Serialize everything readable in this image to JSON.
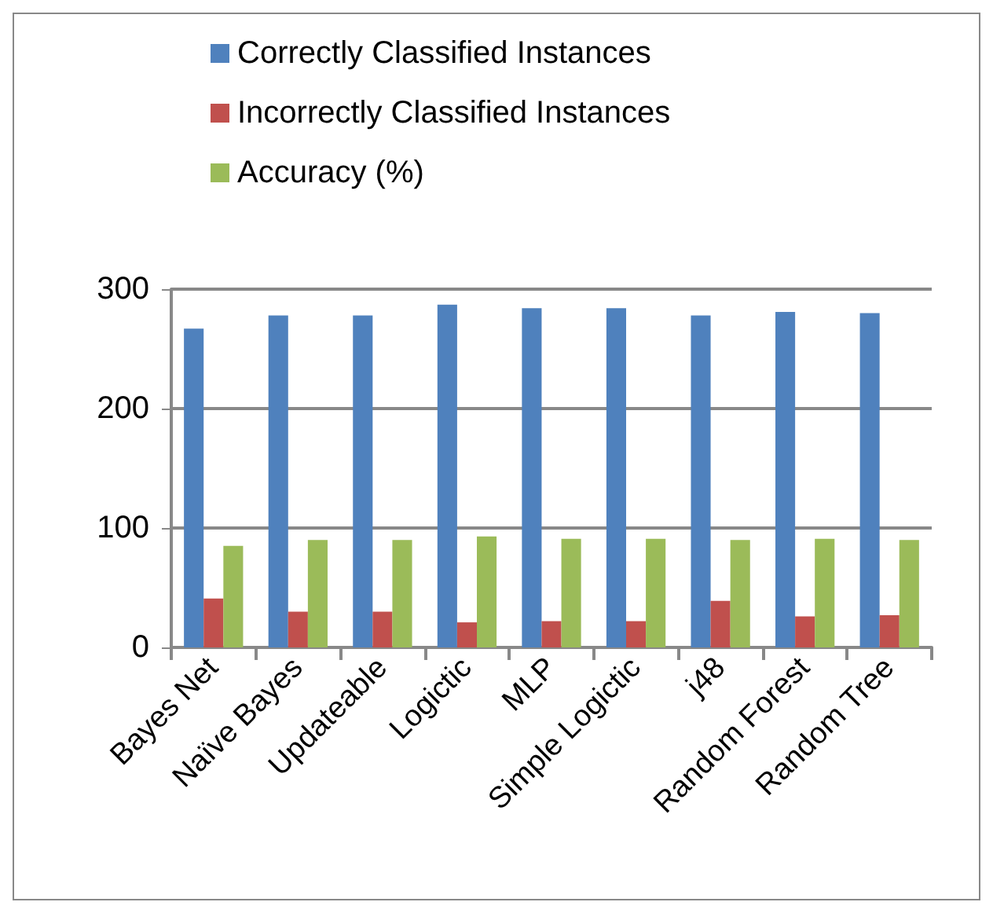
{
  "chart_data": {
    "type": "bar",
    "categories": [
      "Bayes Net",
      "Naïve Bayes",
      "Updateable",
      "Logictic",
      "MLP",
      "Simple Logictic",
      "j48",
      "Random Forest",
      "Random Tree"
    ],
    "series": [
      {
        "name": "Correctly Classified Instances",
        "color": "#4f81bd",
        "values": [
          267,
          278,
          278,
          287,
          284,
          284,
          278,
          281,
          280
        ]
      },
      {
        "name": "Incorrectly Classified Instances",
        "color": "#c0504d",
        "values": [
          41,
          30,
          30,
          21,
          22,
          22,
          39,
          26,
          27
        ]
      },
      {
        "name": "Accuracy (%)",
        "color": "#9bbb59",
        "values": [
          85,
          90,
          90,
          93,
          91,
          91,
          90,
          91,
          90
        ]
      }
    ],
    "ylim": [
      0,
      300
    ],
    "yticks": [
      0,
      100,
      200,
      300
    ],
    "grid": "y",
    "legend": "top"
  }
}
